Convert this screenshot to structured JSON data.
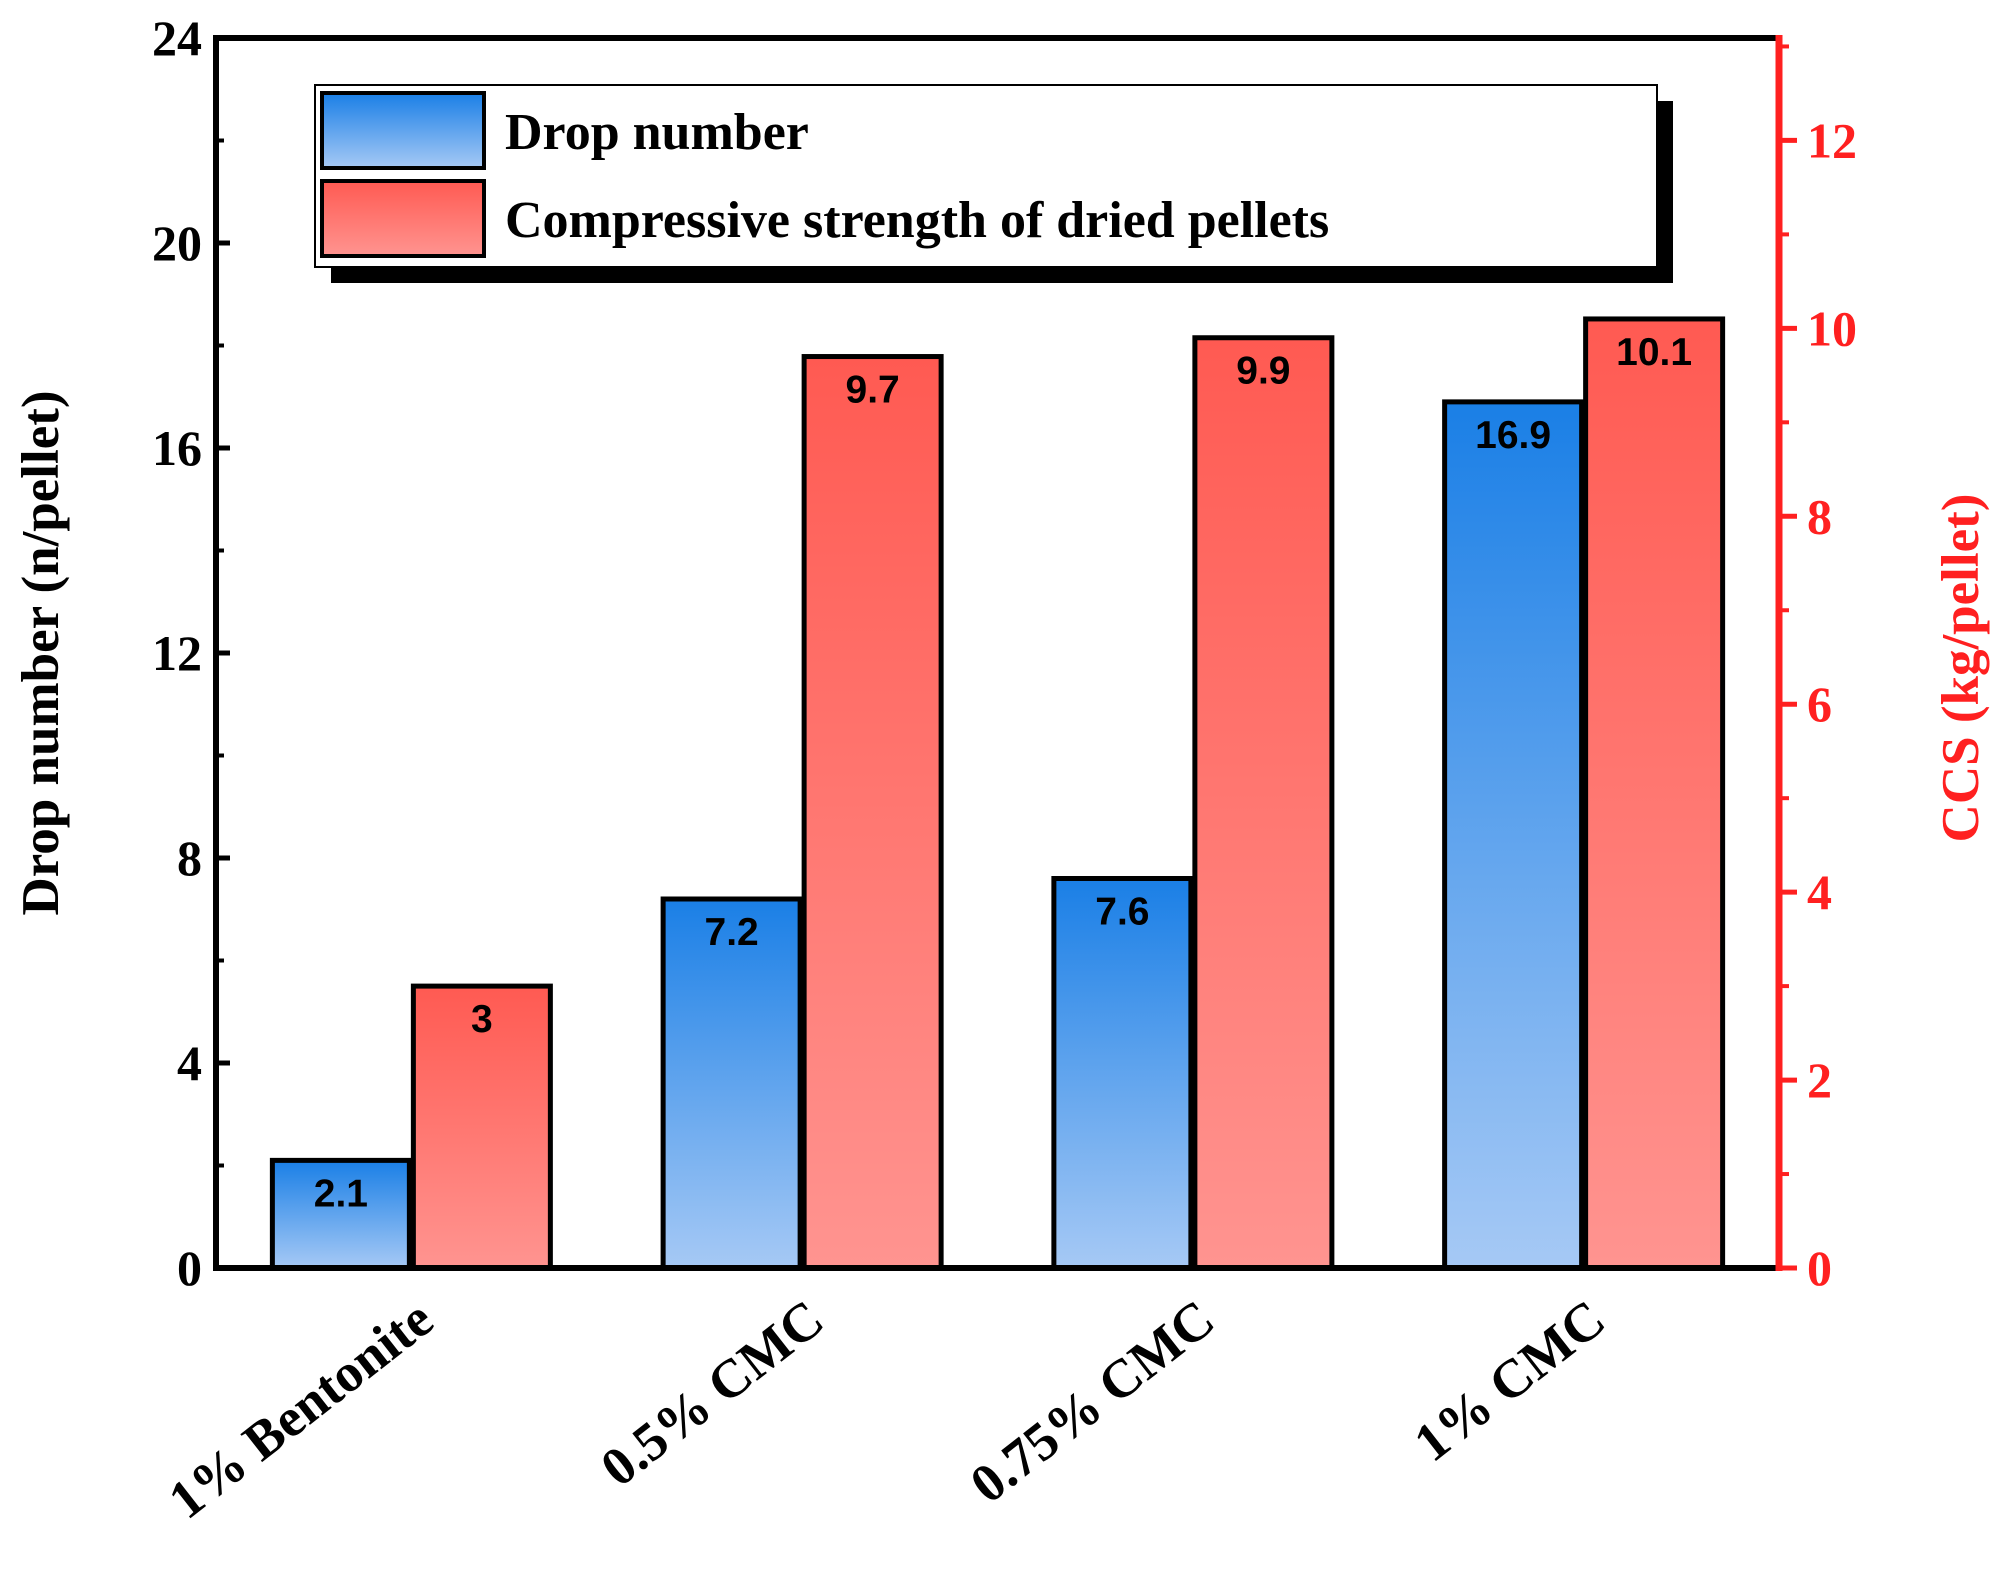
{
  "chart_data": {
    "type": "bar",
    "categories": [
      "1% Bentonite",
      "0.5% CMC",
      "0.75% CMC",
      "1% CMC"
    ],
    "series": [
      {
        "name": "Drop number",
        "axis": "left",
        "values": [
          2.1,
          7.2,
          7.6,
          16.9
        ],
        "labels": [
          "2.1",
          "7.2",
          "7.6",
          "16.9"
        ]
      },
      {
        "name": "Compressive strength of dried pellets",
        "axis": "right",
        "values": [
          3,
          9.7,
          9.9,
          10.1
        ],
        "labels": [
          "3",
          "9.7",
          "9.9",
          "10.1"
        ]
      }
    ],
    "ylabel": "Drop number (n/pellet)",
    "ylim": [
      0,
      24
    ],
    "yticks": [
      0,
      4,
      8,
      12,
      16,
      20,
      24
    ],
    "ytick_labels": [
      "0",
      "4",
      "8",
      "12",
      "16",
      "20",
      "24"
    ],
    "y2label": "CCS (kg/pellet)",
    "y2lim": [
      0,
      13.09
    ],
    "y2ticks": [
      0,
      2,
      4,
      6,
      8,
      10,
      12
    ],
    "y2tick_labels": [
      "0",
      "2",
      "4",
      "6",
      "8",
      "10",
      "12"
    ],
    "legend_position": "top",
    "grid": false
  },
  "colors": {
    "axis_left": "#000000",
    "axis_right": "#ff2020",
    "series1_top": "#1a7fe6",
    "series1_bottom": "#a6c9f5",
    "series2_top": "#ff5a52",
    "series2_bottom": "#ff9490"
  }
}
